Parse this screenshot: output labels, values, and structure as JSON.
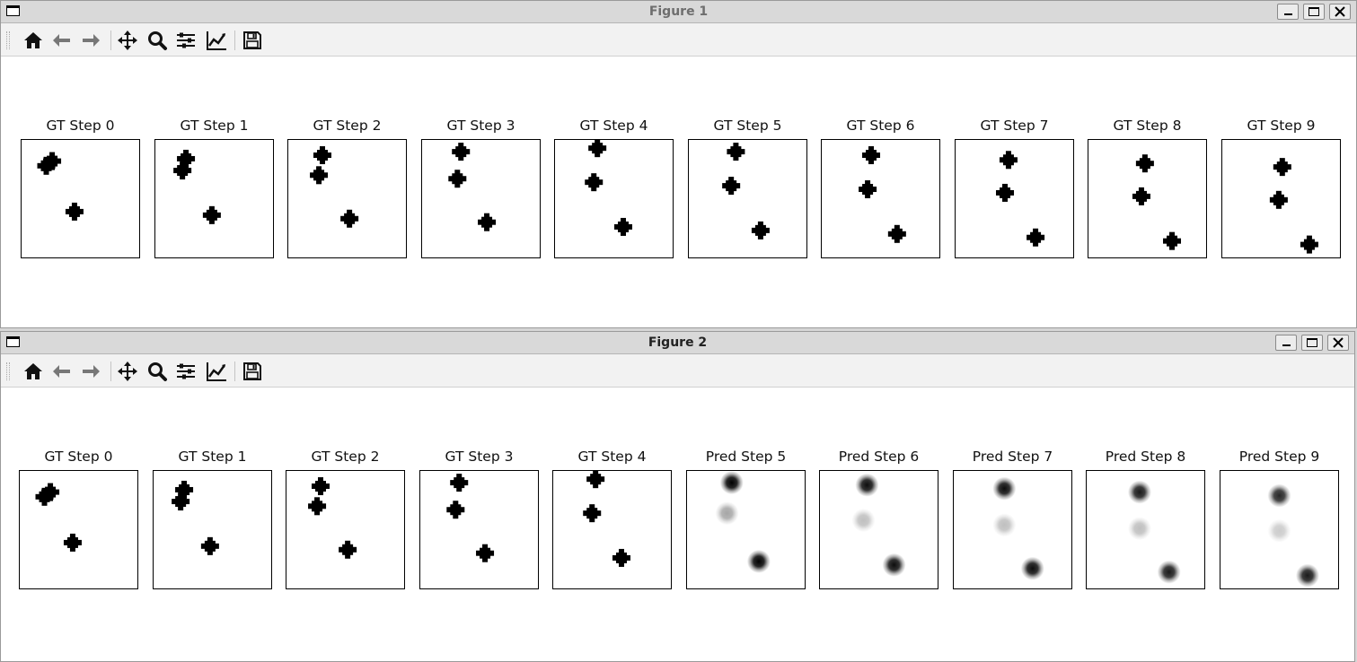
{
  "toolbar": {
    "tools": [
      {
        "name": "home-icon"
      },
      {
        "name": "back-icon"
      },
      {
        "name": "forward-icon"
      },
      {
        "name": "pan-icon"
      },
      {
        "name": "zoom-icon"
      },
      {
        "name": "subplots-icon"
      },
      {
        "name": "customize-icon"
      },
      {
        "name": "save-icon"
      }
    ]
  },
  "window_controls": [
    "minimize-icon",
    "maximize-icon",
    "close-icon"
  ],
  "figures": [
    {
      "title": "Figure 1",
      "active": false,
      "panels": [
        {
          "title": "GT Step 0",
          "kind": "gt",
          "points": [
            [
              0.21,
              0.22
            ],
            [
              0.26,
              0.18
            ],
            [
              0.45,
              0.61
            ]
          ]
        },
        {
          "title": "GT Step 1",
          "kind": "gt",
          "points": [
            [
              0.23,
              0.26
            ],
            [
              0.26,
              0.16
            ],
            [
              0.48,
              0.64
            ]
          ]
        },
        {
          "title": "GT Step 2",
          "kind": "gt",
          "points": [
            [
              0.26,
              0.3
            ],
            [
              0.29,
              0.13
            ],
            [
              0.52,
              0.67
            ]
          ]
        },
        {
          "title": "GT Step 3",
          "kind": "gt",
          "points": [
            [
              0.3,
              0.33
            ],
            [
              0.33,
              0.1
            ],
            [
              0.55,
              0.7
            ]
          ]
        },
        {
          "title": "GT Step 4",
          "kind": "gt",
          "points": [
            [
              0.33,
              0.36
            ],
            [
              0.36,
              0.07
            ],
            [
              0.58,
              0.74
            ]
          ]
        },
        {
          "title": "GT Step 5",
          "kind": "gt",
          "points": [
            [
              0.36,
              0.39
            ],
            [
              0.4,
              0.1
            ],
            [
              0.61,
              0.77
            ]
          ]
        },
        {
          "title": "GT Step 6",
          "kind": "gt",
          "points": [
            [
              0.39,
              0.42
            ],
            [
              0.42,
              0.13
            ],
            [
              0.64,
              0.8
            ]
          ]
        },
        {
          "title": "GT Step 7",
          "kind": "gt",
          "points": [
            [
              0.42,
              0.45
            ],
            [
              0.45,
              0.17
            ],
            [
              0.68,
              0.83
            ]
          ]
        },
        {
          "title": "GT Step 8",
          "kind": "gt",
          "points": [
            [
              0.45,
              0.48
            ],
            [
              0.48,
              0.2
            ],
            [
              0.71,
              0.86
            ]
          ]
        },
        {
          "title": "GT Step 9",
          "kind": "gt",
          "points": [
            [
              0.48,
              0.51
            ],
            [
              0.51,
              0.23
            ],
            [
              0.74,
              0.89
            ]
          ]
        }
      ]
    },
    {
      "title": "Figure 2",
      "active": true,
      "panels": [
        {
          "title": "GT Step 0",
          "kind": "gt",
          "points": [
            [
              0.21,
              0.22
            ],
            [
              0.26,
              0.18
            ],
            [
              0.45,
              0.61
            ]
          ]
        },
        {
          "title": "GT Step 1",
          "kind": "gt",
          "points": [
            [
              0.23,
              0.26
            ],
            [
              0.26,
              0.16
            ],
            [
              0.48,
              0.64
            ]
          ]
        },
        {
          "title": "GT Step 2",
          "kind": "gt",
          "points": [
            [
              0.26,
              0.3
            ],
            [
              0.29,
              0.13
            ],
            [
              0.52,
              0.67
            ]
          ]
        },
        {
          "title": "GT Step 3",
          "kind": "gt",
          "points": [
            [
              0.3,
              0.33
            ],
            [
              0.33,
              0.1
            ],
            [
              0.55,
              0.7
            ]
          ]
        },
        {
          "title": "GT Step 4",
          "kind": "gt",
          "points": [
            [
              0.33,
              0.36
            ],
            [
              0.36,
              0.07
            ],
            [
              0.58,
              0.74
            ]
          ]
        },
        {
          "title": "Pred Step 5",
          "kind": "pred",
          "points": [
            [
              0.38,
              0.1,
              1.0
            ],
            [
              0.34,
              0.36,
              0.35
            ],
            [
              0.61,
              0.77,
              1.0
            ]
          ]
        },
        {
          "title": "Pred Step 6",
          "kind": "pred",
          "points": [
            [
              0.4,
              0.12,
              0.95
            ],
            [
              0.37,
              0.42,
              0.25
            ],
            [
              0.63,
              0.8,
              0.95
            ]
          ]
        },
        {
          "title": "Pred Step 7",
          "kind": "pred",
          "points": [
            [
              0.43,
              0.15,
              0.95
            ],
            [
              0.43,
              0.46,
              0.25
            ],
            [
              0.67,
              0.83,
              0.95
            ]
          ]
        },
        {
          "title": "Pred Step 8",
          "kind": "pred",
          "points": [
            [
              0.45,
              0.18,
              0.9
            ],
            [
              0.45,
              0.49,
              0.25
            ],
            [
              0.7,
              0.86,
              0.9
            ]
          ]
        },
        {
          "title": "Pred Step 9",
          "kind": "pred",
          "points": [
            [
              0.5,
              0.21,
              0.85
            ],
            [
              0.5,
              0.51,
              0.2
            ],
            [
              0.74,
              0.89,
              0.9
            ]
          ]
        }
      ]
    }
  ]
}
